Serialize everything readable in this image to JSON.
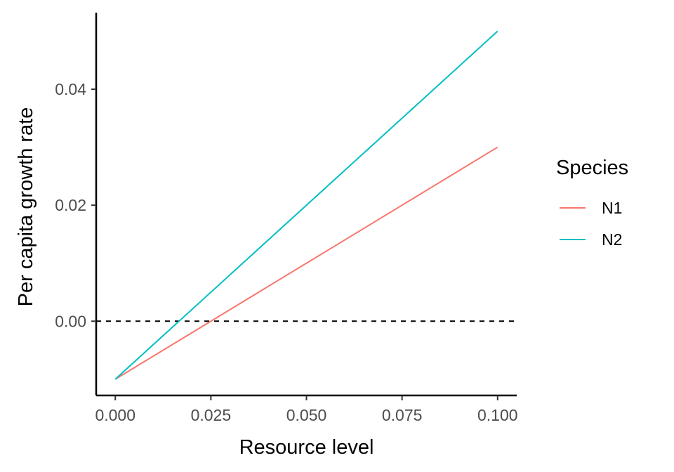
{
  "chart_data": {
    "type": "line",
    "xlabel": "Resource level",
    "ylabel": "Per capita growth rate",
    "xlim": [
      -0.005,
      0.105
    ],
    "ylim": [
      -0.0128,
      0.0532
    ],
    "xticks": [
      0,
      0.025,
      0.05,
      0.075,
      0.1
    ],
    "xtick_labels": [
      "0.000",
      "0.025",
      "0.050",
      "0.075",
      "0.100"
    ],
    "yticks": [
      0,
      0.02,
      0.04
    ],
    "ytick_labels": [
      "0.00",
      "0.02",
      "0.04"
    ],
    "grid": false,
    "legend": {
      "title": "Species",
      "position": "right"
    },
    "reference_line": {
      "y": 0,
      "style": "dashed",
      "color": "#000000"
    },
    "series": [
      {
        "name": "N1",
        "color": "#F8766D",
        "x": [
          0,
          0.1
        ],
        "y": [
          -0.01,
          0.03
        ]
      },
      {
        "name": "N2",
        "color": "#00BFC4",
        "x": [
          0,
          0.1
        ],
        "y": [
          -0.01,
          0.05
        ]
      }
    ]
  }
}
